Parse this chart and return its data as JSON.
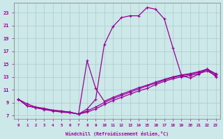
{
  "xlabel": "Windchill (Refroidissement éolien,°C)",
  "bg_color": "#cce8e8",
  "line_color": "#990099",
  "grid_color": "#aacccc",
  "xlim": [
    -0.5,
    23.5
  ],
  "ylim": [
    6.5,
    24.5
  ],
  "yticks": [
    7,
    9,
    11,
    13,
    15,
    17,
    19,
    21,
    23
  ],
  "xticks": [
    0,
    1,
    2,
    3,
    4,
    5,
    6,
    7,
    8,
    9,
    10,
    11,
    12,
    13,
    14,
    15,
    16,
    17,
    18,
    19,
    20,
    21,
    22,
    23
  ],
  "curve1_x": [
    0,
    1,
    2,
    3,
    4,
    5,
    6,
    7,
    8,
    9,
    10,
    11,
    12,
    13,
    14,
    15,
    16,
    17,
    18,
    19,
    20,
    21,
    22,
    23
  ],
  "curve1_y": [
    9.5,
    8.8,
    8.3,
    8.1,
    7.8,
    7.7,
    7.5,
    7.2,
    8.0,
    9.5,
    18.0,
    20.8,
    22.2,
    22.5,
    22.5,
    23.8,
    23.5,
    22.0,
    17.5,
    13.2,
    12.8,
    13.4,
    14.2,
    13.0
  ],
  "curve2_x": [
    0,
    1,
    2,
    3,
    4,
    5,
    6,
    7,
    8,
    9,
    10,
    11,
    12,
    13,
    14,
    15,
    16,
    17,
    18,
    19,
    20,
    21,
    22,
    23
  ],
  "curve2_y": [
    9.5,
    8.5,
    8.2,
    8.0,
    7.8,
    7.6,
    7.5,
    7.2,
    7.5,
    8.0,
    8.7,
    9.3,
    9.8,
    10.3,
    10.8,
    11.2,
    11.8,
    12.3,
    12.7,
    13.0,
    13.2,
    13.5,
    13.9,
    13.2
  ],
  "curve3_x": [
    0,
    1,
    2,
    3,
    4,
    5,
    6,
    7,
    8,
    9,
    10,
    11,
    12,
    13,
    14,
    15,
    16,
    17,
    18,
    19,
    20,
    21,
    22,
    23
  ],
  "curve3_y": [
    9.5,
    8.5,
    8.2,
    8.0,
    7.8,
    7.6,
    7.5,
    7.2,
    7.7,
    8.3,
    9.0,
    9.6,
    10.1,
    10.6,
    11.1,
    11.6,
    12.0,
    12.5,
    12.9,
    13.2,
    13.4,
    13.7,
    14.1,
    13.4
  ],
  "curve4_x": [
    0,
    1,
    2,
    3,
    4,
    5,
    6,
    7,
    8,
    9,
    10,
    11,
    12,
    13,
    14,
    15,
    16,
    17,
    18,
    19,
    20,
    21,
    22,
    23
  ],
  "curve4_y": [
    9.5,
    8.5,
    8.2,
    7.9,
    7.7,
    7.5,
    7.4,
    7.2,
    15.5,
    11.2,
    9.2,
    9.8,
    10.3,
    10.8,
    11.3,
    11.7,
    12.2,
    12.6,
    13.0,
    13.3,
    13.5,
    13.8,
    14.2,
    13.5
  ]
}
